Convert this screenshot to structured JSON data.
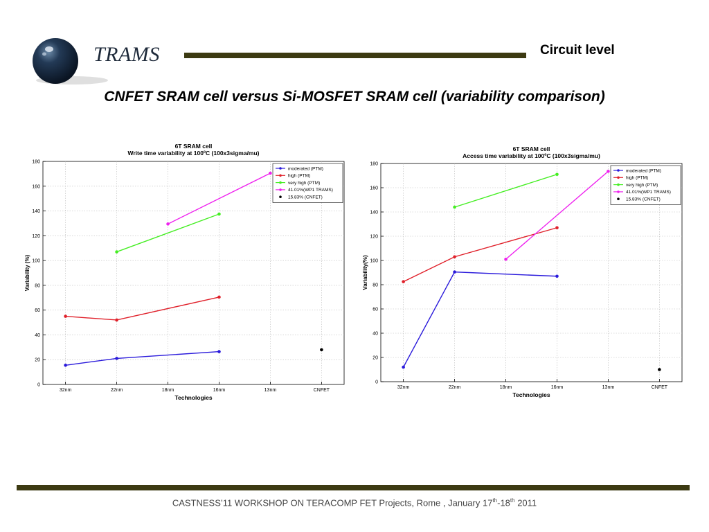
{
  "header": {
    "logo_text": "TRAMS",
    "section_label": "Circuit level",
    "title": "CNFET SRAM cell versus Si-MOSFET SRAM cell (variability comparison)"
  },
  "footer": {
    "text_main": "CASTNESS’11 WORKSHOP ON TERACOMP  FET Projects, Rome , January 17",
    "sup1": "th",
    "dash": "-18",
    "sup2": "th",
    "year": " 2011"
  },
  "colors": {
    "bar": "#3c3a12",
    "moderated": "#2a1adb",
    "high": "#e0202a",
    "very_high": "#44ee22",
    "wp1": "#ee22ee",
    "cnfet": "#000000"
  },
  "chart_data": [
    {
      "type": "line",
      "title": "6T SRAM cell",
      "subtitle": "Write time variability at 100ºC (100x3sigma/mu)",
      "xlabel": "Technologies",
      "ylabel": "Variability (%)",
      "categories": [
        "32nm",
        "22nm",
        "18nm",
        "16nm",
        "13nm",
        "CNFET"
      ],
      "ylim": [
        0,
        180
      ],
      "yticks": [
        0,
        20,
        40,
        60,
        80,
        100,
        120,
        140,
        160,
        180
      ],
      "grid": true,
      "legend_position": "top-right",
      "series": [
        {
          "name": "moderated (PTM)",
          "color": "#2a1adb",
          "x": [
            "32nm",
            "22nm",
            "16nm"
          ],
          "values": [
            15.5,
            21,
            26.5
          ]
        },
        {
          "name": "high (PTM)",
          "color": "#e0202a",
          "x": [
            "32nm",
            "22nm",
            "16nm"
          ],
          "values": [
            55,
            52,
            70.5
          ]
        },
        {
          "name": "very high (PTM)",
          "color": "#44ee22",
          "x": [
            "22nm",
            "16nm"
          ],
          "values": [
            107,
            137.5
          ]
        },
        {
          "name": "41.01%(WP1 TRAMS)",
          "color": "#ee22ee",
          "x": [
            "18nm",
            "13nm"
          ],
          "values": [
            129.5,
            170.5
          ]
        },
        {
          "name": "15.83% (CNFET)",
          "color": "#000000",
          "marker_only": true,
          "x": [
            "CNFET"
          ],
          "values": [
            28
          ]
        }
      ]
    },
    {
      "type": "line",
      "title": "6T SRAM cell",
      "subtitle": "Access time variability at 100ºC (100x3sigma/mu)",
      "xlabel": "Technologies",
      "ylabel": "Variability(%)",
      "categories": [
        "32nm",
        "22nm",
        "18nm",
        "16nm",
        "13nm",
        "CNFET"
      ],
      "ylim": [
        0,
        180
      ],
      "yticks": [
        0,
        20,
        40,
        60,
        80,
        100,
        120,
        140,
        160,
        180
      ],
      "grid": true,
      "legend_position": "top-right",
      "series": [
        {
          "name": "moderated (PTM)",
          "color": "#2a1adb",
          "x": [
            "32nm",
            "22nm",
            "16nm"
          ],
          "values": [
            12,
            90.5,
            87
          ]
        },
        {
          "name": "high (PTM)",
          "color": "#e0202a",
          "x": [
            "32nm",
            "22nm",
            "16nm"
          ],
          "values": [
            82.5,
            103,
            127
          ]
        },
        {
          "name": "very high (PTM)",
          "color": "#44ee22",
          "x": [
            "22nm",
            "16nm"
          ],
          "values": [
            144,
            171
          ]
        },
        {
          "name": "41.01%(WP1 TRAMS)",
          "color": "#ee22ee",
          "x": [
            "18nm",
            "13nm"
          ],
          "values": [
            101,
            173.5
          ]
        },
        {
          "name": "15.83% (CNFET)",
          "color": "#000000",
          "marker_only": true,
          "x": [
            "CNFET"
          ],
          "values": [
            10
          ]
        }
      ]
    }
  ]
}
